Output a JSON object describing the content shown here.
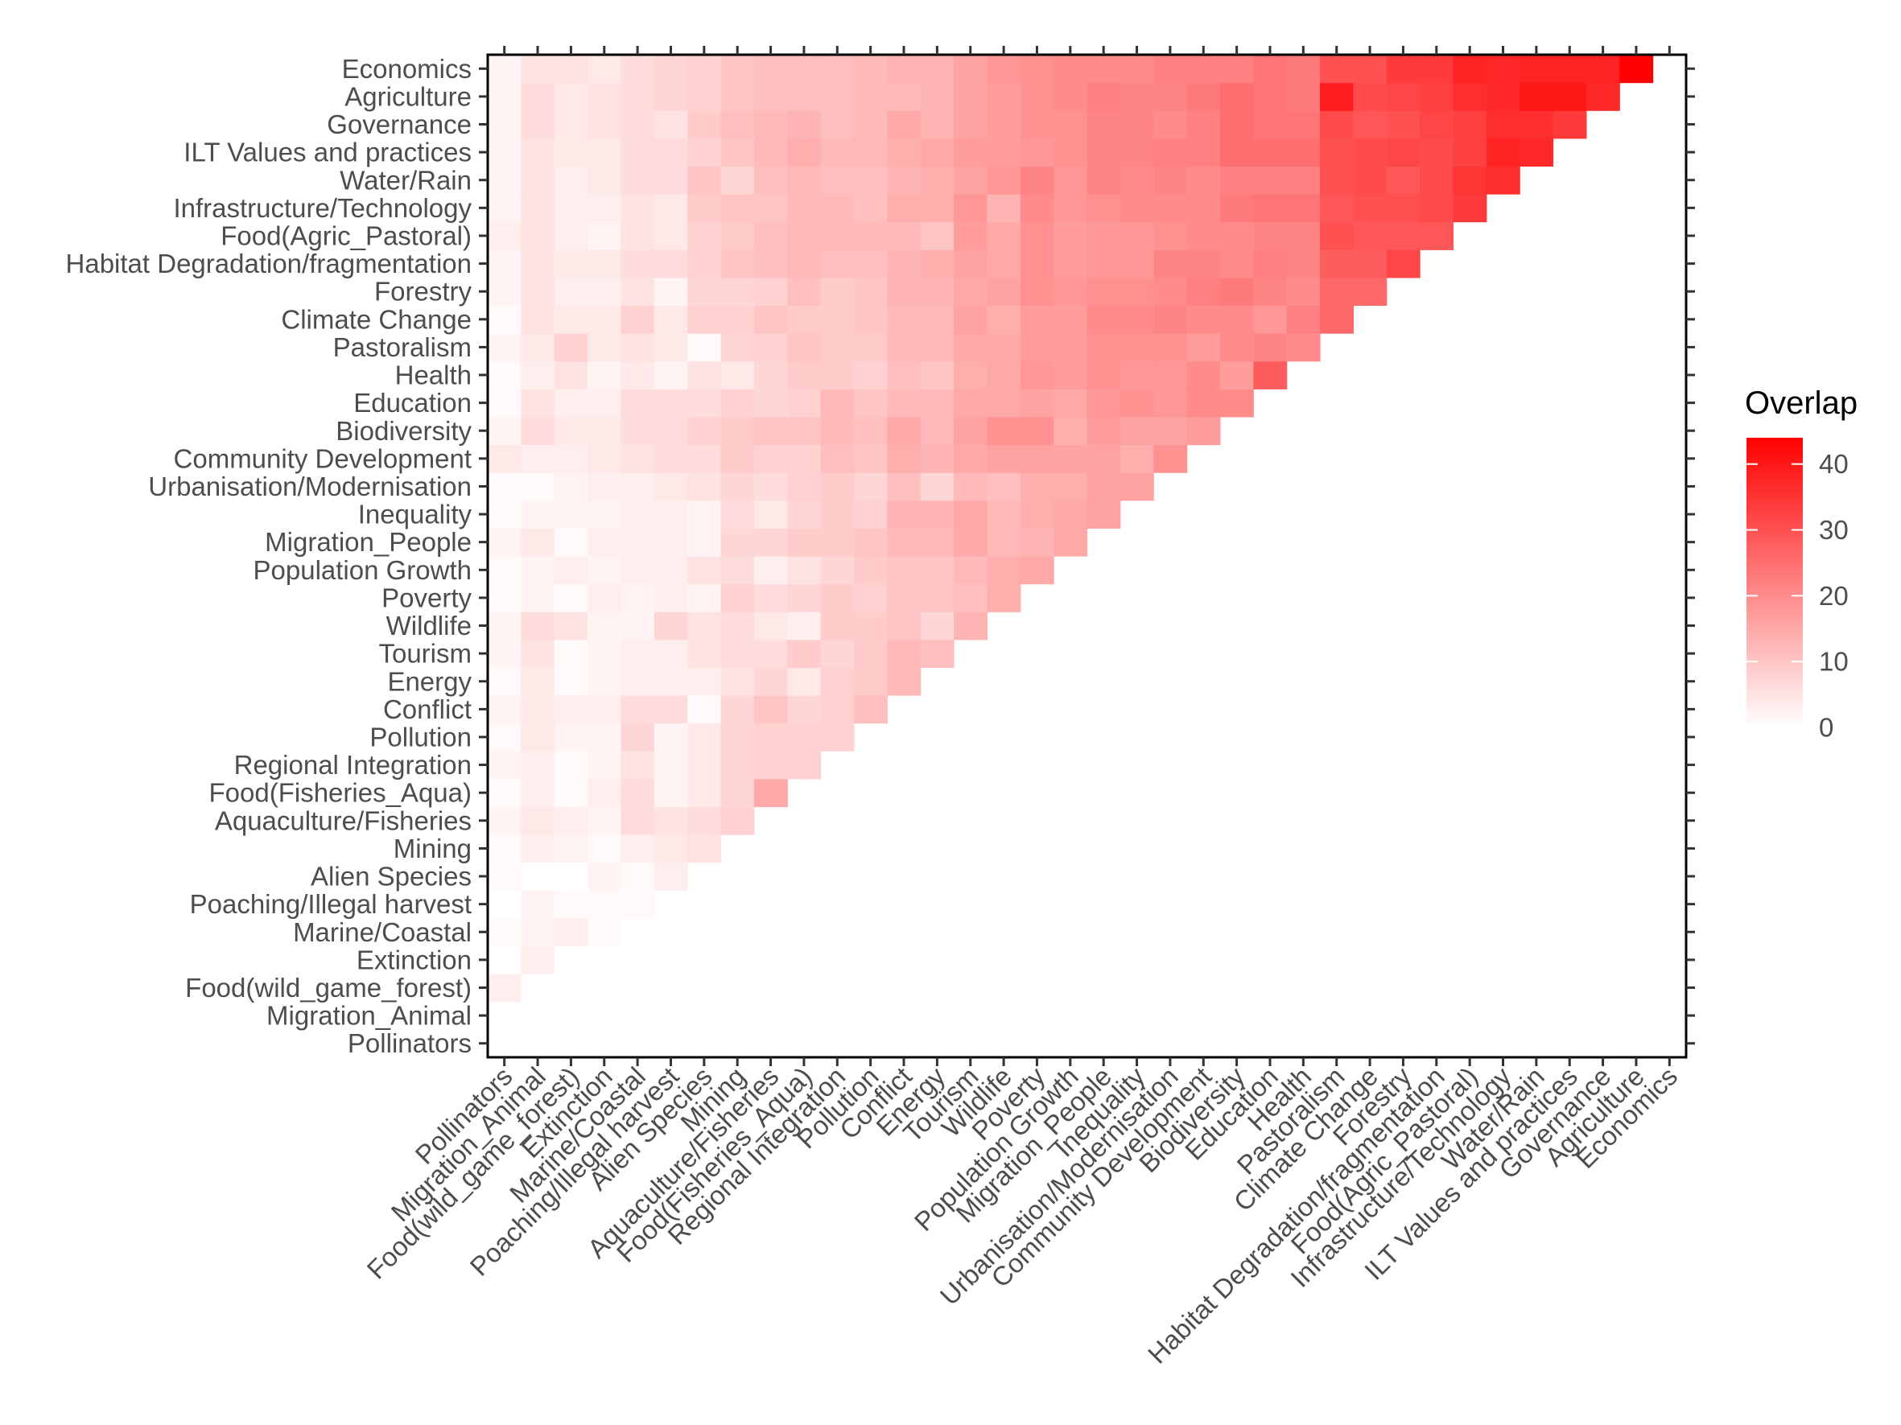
{
  "chart_data": {
    "type": "heatmap",
    "title": "",
    "xlabel": "",
    "ylabel": "",
    "categories": [
      "Pollinators",
      "Migration_Animal",
      "Food(wild_game_forest)",
      "Extinction",
      "Marine/Coastal",
      "Poaching/Illegal harvest",
      "Alien Species",
      "Mining",
      "Aquaculture/Fisheries",
      "Food(Fisheries_Aqua)",
      "Regional Integration",
      "Pollution",
      "Conflict",
      "Energy",
      "Tourism",
      "Wildlife",
      "Poverty",
      "Population Growth",
      "Migration_People",
      "Inequality",
      "Urbanisation/Modernisation",
      "Community Development",
      "Biodiversity",
      "Education",
      "Health",
      "Pastoralism",
      "Climate Change",
      "Forestry",
      "Habitat Degradation/fragmentation",
      "Food(Agric_Pastoral)",
      "Infrastructure/Technology",
      "Water/Rain",
      "ILT Values and practices",
      "Governance",
      "Agriculture",
      "Economics"
    ],
    "values": [
      [],
      [
        0
      ],
      [
        3,
        0
      ],
      [
        0,
        3,
        0
      ],
      [
        1,
        2,
        3,
        1
      ],
      [
        0,
        2,
        1,
        1,
        1
      ],
      [
        1,
        0,
        0,
        2,
        1,
        3
      ],
      [
        1,
        3,
        2,
        1,
        3,
        4,
        5
      ],
      [
        2,
        4,
        3,
        2,
        6,
        5,
        6,
        8
      ],
      [
        1,
        3,
        1,
        3,
        6,
        2,
        4,
        7,
        15
      ],
      [
        2,
        3,
        1,
        2,
        5,
        2,
        4,
        7,
        8,
        8
      ],
      [
        1,
        4,
        2,
        2,
        7,
        2,
        4,
        7,
        8,
        8,
        8
      ],
      [
        2,
        4,
        3,
        3,
        6,
        6,
        1,
        7,
        10,
        7,
        8,
        11
      ],
      [
        1,
        4,
        1,
        2,
        3,
        3,
        3,
        5,
        7,
        4,
        8,
        9,
        12
      ],
      [
        2,
        5,
        1,
        2,
        3,
        3,
        5,
        6,
        6,
        9,
        7,
        9,
        12,
        11
      ],
      [
        2,
        6,
        5,
        2,
        2,
        7,
        5,
        6,
        4,
        3,
        9,
        9,
        10,
        7,
        13
      ],
      [
        1,
        2,
        1,
        3,
        2,
        3,
        2,
        8,
        6,
        7,
        9,
        8,
        10,
        10,
        11,
        14
      ],
      [
        1,
        2,
        3,
        2,
        3,
        3,
        5,
        6,
        3,
        5,
        7,
        9,
        10,
        10,
        12,
        14,
        15
      ],
      [
        2,
        4,
        1,
        3,
        3,
        3,
        2,
        7,
        7,
        9,
        9,
        10,
        12,
        12,
        15,
        12,
        13,
        15
      ],
      [
        1,
        2,
        2,
        2,
        3,
        3,
        2,
        6,
        4,
        7,
        9,
        8,
        13,
        13,
        15,
        12,
        14,
        15,
        16
      ],
      [
        1,
        1,
        2,
        3,
        3,
        4,
        5,
        7,
        6,
        8,
        9,
        7,
        11,
        7,
        12,
        11,
        14,
        14,
        16,
        16
      ],
      [
        4,
        3,
        3,
        4,
        5,
        6,
        6,
        9,
        8,
        8,
        11,
        10,
        14,
        13,
        15,
        16,
        16,
        16,
        16,
        14,
        19
      ],
      [
        2,
        6,
        4,
        4,
        6,
        6,
        8,
        9,
        10,
        10,
        12,
        11,
        15,
        12,
        16,
        19,
        19,
        14,
        17,
        16,
        16,
        17
      ],
      [
        1,
        5,
        3,
        3,
        6,
        6,
        6,
        8,
        7,
        8,
        12,
        10,
        12,
        12,
        15,
        15,
        16,
        15,
        18,
        19,
        18,
        20,
        20
      ],
      [
        1,
        3,
        5,
        2,
        4,
        2,
        5,
        4,
        7,
        9,
        9,
        8,
        11,
        10,
        14,
        15,
        18,
        17,
        19,
        18,
        18,
        20,
        17,
        28
      ],
      [
        2,
        4,
        8,
        4,
        5,
        4,
        1,
        7,
        8,
        10,
        9,
        9,
        12,
        12,
        15,
        15,
        17,
        17,
        19,
        19,
        19,
        17,
        20,
        21,
        20
      ],
      [
        1,
        5,
        4,
        4,
        8,
        4,
        8,
        8,
        10,
        9,
        9,
        10,
        12,
        12,
        16,
        14,
        17,
        17,
        20,
        20,
        21,
        20,
        20,
        18,
        22,
        26
      ],
      [
        2,
        5,
        3,
        3,
        5,
        2,
        7,
        7,
        8,
        11,
        9,
        10,
        13,
        13,
        15,
        16,
        19,
        18,
        19,
        19,
        20,
        22,
        23,
        21,
        20,
        26,
        26
      ],
      [
        2,
        5,
        4,
        4,
        6,
        6,
        8,
        10,
        11,
        12,
        11,
        11,
        13,
        14,
        16,
        15,
        19,
        17,
        18,
        18,
        21,
        21,
        20,
        22,
        21,
        28,
        28,
        32
      ],
      [
        3,
        5,
        3,
        2,
        5,
        4,
        8,
        9,
        11,
        12,
        12,
        12,
        12,
        10,
        17,
        15,
        19,
        17,
        18,
        18,
        19,
        20,
        20,
        21,
        21,
        30,
        29,
        29,
        29
      ],
      [
        2,
        5,
        3,
        3,
        5,
        4,
        9,
        10,
        10,
        12,
        12,
        11,
        14,
        14,
        18,
        13,
        20,
        18,
        19,
        20,
        20,
        20,
        23,
        24,
        24,
        29,
        30,
        30,
        31,
        34
      ],
      [
        2,
        5,
        3,
        4,
        6,
        6,
        10,
        7,
        11,
        12,
        11,
        11,
        13,
        14,
        16,
        18,
        21,
        18,
        21,
        20,
        21,
        20,
        22,
        22,
        22,
        30,
        31,
        29,
        31,
        35,
        36
      ],
      [
        2,
        5,
        4,
        4,
        6,
        6,
        8,
        10,
        12,
        14,
        12,
        12,
        14,
        15,
        17,
        17,
        18,
        19,
        21,
        21,
        22,
        22,
        25,
        25,
        25,
        30,
        31,
        32,
        31,
        33,
        38,
        37
      ],
      [
        2,
        6,
        4,
        5,
        6,
        5,
        9,
        11,
        12,
        13,
        11,
        12,
        15,
        13,
        16,
        17,
        19,
        19,
        21,
        21,
        20,
        22,
        25,
        24,
        24,
        31,
        29,
        30,
        32,
        33,
        36,
        36,
        34
      ],
      [
        2,
        6,
        4,
        5,
        6,
        7,
        8,
        10,
        11,
        11,
        11,
        12,
        12,
        13,
        16,
        17,
        19,
        20,
        22,
        21,
        21,
        23,
        25,
        24,
        23,
        39,
        31,
        32,
        33,
        36,
        37,
        40,
        40,
        37
      ],
      [
        2,
        5,
        5,
        4,
        6,
        7,
        8,
        10,
        11,
        11,
        11,
        12,
        13,
        13,
        16,
        18,
        19,
        20,
        20,
        20,
        22,
        22,
        22,
        24,
        23,
        30,
        30,
        34,
        34,
        38,
        37,
        38,
        38,
        38,
        44
      ]
    ],
    "vmin": 0,
    "vmax": 44,
    "colorbar": {
      "title": "Overlap",
      "ticks": [
        0,
        10,
        20,
        30,
        40
      ],
      "low_color": "#ffffff",
      "high_color": "#ff0000"
    },
    "legend_position": "right",
    "grid": false
  }
}
